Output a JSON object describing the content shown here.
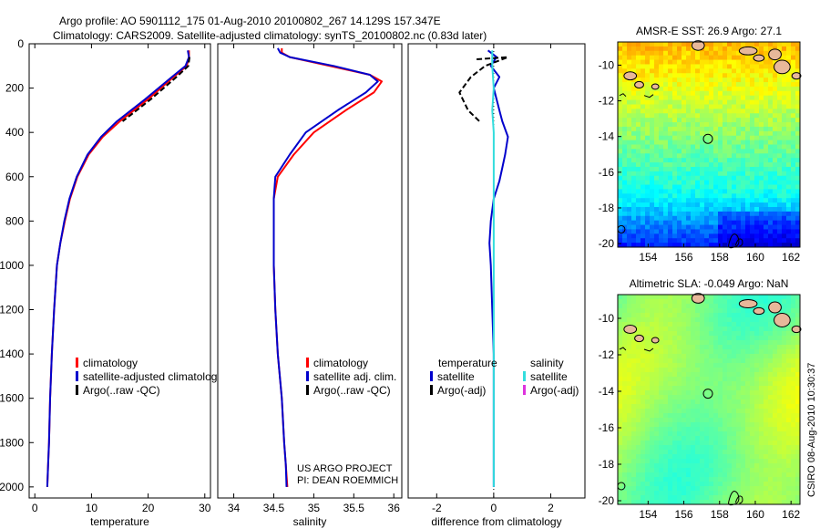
{
  "header": {
    "line1": "Argo profile: AO 5901112_175 01-Aug-2010 20100802_267 14.129S 157.347E",
    "line2": "Climatology: CARS2009. Satellite-adjusted climatology: synTS_20100802.nc (0.83d later)"
  },
  "footer": {
    "project": "US ARGO PROJECT",
    "pi": "PI: DEAN ROEMMICH",
    "stamp": "CSIRO 08-Aug-2010 10:30:37"
  },
  "colors": {
    "climatology": "#ff0000",
    "satellite": "#0000cc",
    "argo": "#000000",
    "salinity_satellite": "#33dddd",
    "salinity_argo": "#dd33dd",
    "land": "#e8b89a"
  },
  "chart_data": [
    {
      "type": "line",
      "id": "temperature",
      "xlabel": "temperature",
      "xlim": [
        -1,
        31
      ],
      "ylim": [
        2050,
        0
      ],
      "xticks": [
        0,
        10,
        20,
        30
      ],
      "yticks": [
        0,
        200,
        400,
        600,
        800,
        1000,
        1200,
        1400,
        1600,
        1800,
        2000
      ],
      "legend": [
        "climatology",
        "satellite-adjusted climatology",
        "Argo(..raw -QC)"
      ],
      "series": [
        {
          "name": "climatology",
          "color": "#ff0000",
          "x": [
            27.2,
            27.2,
            26.8,
            24.5,
            20.0,
            15.0,
            12.0,
            9.5,
            7.5,
            6.2,
            5.3,
            4.5,
            3.9,
            3.4,
            3.0,
            2.7,
            2.5,
            2.35,
            2.2
          ],
          "y": [
            30,
            60,
            100,
            150,
            250,
            350,
            420,
            500,
            600,
            700,
            800,
            900,
            1000,
            1200,
            1400,
            1600,
            1800,
            1900,
            2000
          ]
        },
        {
          "name": "satellite-adjusted climatology",
          "color": "#0000cc",
          "x": [
            27.0,
            27.2,
            26.6,
            24.2,
            19.5,
            14.5,
            11.7,
            9.3,
            7.4,
            6.1,
            5.2,
            4.5,
            3.9,
            3.4,
            3.0,
            2.7,
            2.5,
            2.35,
            2.2
          ],
          "y": [
            30,
            60,
            100,
            150,
            250,
            350,
            420,
            500,
            600,
            700,
            800,
            900,
            1000,
            1200,
            1400,
            1600,
            1800,
            1900,
            2000
          ]
        },
        {
          "name": "Argo(..raw -QC)",
          "color": "#000000",
          "dash": true,
          "x": [
            27.3,
            27.1,
            25.0,
            20.5,
            15.5
          ],
          "y": [
            60,
            100,
            150,
            250,
            350
          ]
        }
      ]
    },
    {
      "type": "line",
      "id": "salinity",
      "xlabel": "salinity",
      "xlim": [
        33.8,
        36.1
      ],
      "ylim": [
        2050,
        0
      ],
      "xticks": [
        34,
        34.5,
        35,
        35.5,
        36
      ],
      "legend": [
        "climatology",
        "satellite adj. clim.",
        "Argo(..raw -QC)"
      ],
      "series": [
        {
          "name": "climatology",
          "color": "#ff0000",
          "x": [
            34.6,
            34.6,
            34.7,
            35.2,
            35.7,
            35.85,
            35.75,
            35.4,
            35.0,
            34.75,
            34.55,
            34.5,
            34.5,
            34.5,
            34.52,
            34.55,
            34.6,
            34.63,
            34.65,
            34.67
          ],
          "y": [
            20,
            40,
            60,
            100,
            140,
            170,
            220,
            300,
            400,
            500,
            600,
            700,
            800,
            1000,
            1200,
            1400,
            1600,
            1800,
            1900,
            2000
          ]
        },
        {
          "name": "satellite adj. clim.",
          "color": "#0000cc",
          "x": [
            34.55,
            34.58,
            34.7,
            35.25,
            35.7,
            35.8,
            35.65,
            35.3,
            34.9,
            34.7,
            34.52,
            34.5,
            34.5,
            34.5,
            34.52,
            34.55,
            34.6,
            34.63,
            34.65,
            34.66
          ],
          "y": [
            20,
            40,
            60,
            100,
            140,
            170,
            220,
            300,
            400,
            500,
            600,
            700,
            800,
            1000,
            1200,
            1400,
            1600,
            1800,
            1900,
            2000
          ]
        }
      ]
    },
    {
      "type": "line",
      "id": "difference",
      "xlabel": "difference from climatology",
      "xlim": [
        -3,
        3.2
      ],
      "ylim": [
        2050,
        0
      ],
      "xticks": [
        -2,
        0,
        2
      ],
      "legend_left_title": "temperature",
      "legend_left": [
        "satellite",
        "Argo(-adj)"
      ],
      "legend_right_title": "salinity",
      "legend_right": [
        "satellite",
        "Argo(-adj)"
      ],
      "series": [
        {
          "name": "temperature satellite",
          "color": "#0000cc",
          "x": [
            -0.2,
            0.1,
            -0.1,
            0.2,
            0.0,
            0.1,
            0.2,
            0.3,
            0.5,
            0.4,
            0.3,
            0.2,
            0.0,
            -0.1,
            -0.15,
            -0.1,
            -0.05,
            0.0,
            0.0,
            0.0,
            0.0,
            0.0
          ],
          "y": [
            30,
            60,
            100,
            150,
            200,
            250,
            300,
            350,
            420,
            500,
            560,
            620,
            700,
            800,
            900,
            1000,
            1200,
            1400,
            1600,
            1800,
            1900,
            2000
          ]
        },
        {
          "name": "temperature Argo(-adj)",
          "color": "#000000",
          "dash": true,
          "x": [
            -0.6,
            0.5,
            -0.3,
            -0.8,
            -1.2,
            -0.9,
            -0.5
          ],
          "y": [
            70,
            60,
            100,
            150,
            220,
            300,
            350
          ]
        },
        {
          "name": "salinity satellite",
          "color": "#33dddd",
          "x": [
            -0.05,
            -0.05,
            0.0,
            -0.05,
            0.0,
            0.0,
            0.0,
            0.0,
            0.0,
            0.0,
            0.0,
            0.0
          ],
          "y": [
            30,
            100,
            200,
            300,
            400,
            500,
            600,
            700,
            900,
            1200,
            1600,
            2000
          ]
        }
      ]
    },
    {
      "type": "heatmap",
      "id": "sst-map",
      "title": "AMSR-E SST: 26.9 Argo: 27.1",
      "xlim": [
        152.3,
        162.5
      ],
      "ylim": [
        -20.2,
        -8.7
      ],
      "xticks": [
        154,
        156,
        158,
        160,
        162
      ],
      "yticks": [
        -10,
        -12,
        -14,
        -16,
        -18,
        -20
      ],
      "marker": [
        157.35,
        -14.13
      ]
    },
    {
      "type": "heatmap",
      "id": "sla-map",
      "title": "Altimetric SLA: -0.049 Argo: NaN",
      "xlim": [
        152.3,
        162.5
      ],
      "ylim": [
        -20.2,
        -8.7
      ],
      "xticks": [
        154,
        156,
        158,
        160,
        162
      ],
      "yticks": [
        -10,
        -12,
        -14,
        -16,
        -18,
        -20
      ],
      "marker": [
        157.35,
        -14.13
      ]
    }
  ]
}
